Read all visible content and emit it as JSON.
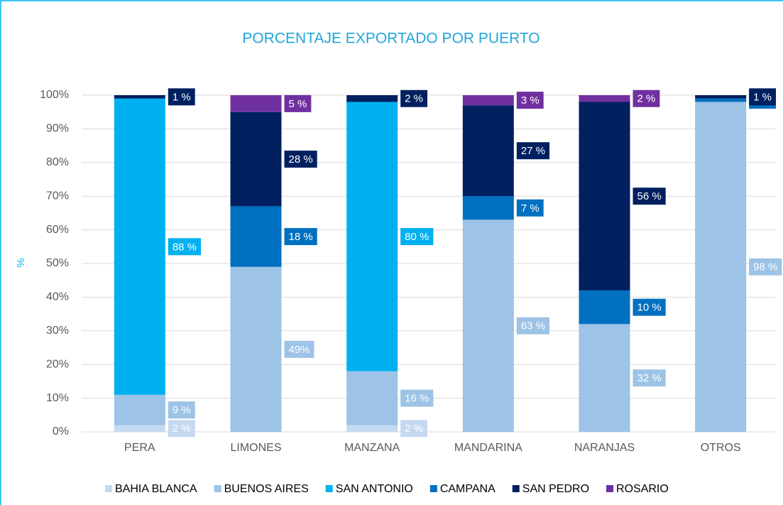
{
  "chart_data": {
    "type": "stacked_bar",
    "title": "PORCENTAJE EXPORTADO POR PUERTO",
    "y_label": "%",
    "categories": [
      "PERA",
      "LIMONES",
      "MANZANA",
      "MANDARINA",
      "NARANJAS",
      "OTROS"
    ],
    "series": [
      {
        "name": "BAHIA BLANCA",
        "color": "#c5d9f1",
        "values": [
          2,
          null,
          2,
          null,
          null,
          null
        ],
        "value_labels": [
          "2 %",
          null,
          "2 %",
          null,
          null,
          null
        ]
      },
      {
        "name": "BUENOS AIRES",
        "color": "#9dc3e6",
        "values": [
          9,
          49,
          16,
          63,
          32,
          98
        ],
        "value_labels": [
          "9 %",
          "49%",
          "16 %",
          "63 %",
          "32 %",
          "98 %"
        ]
      },
      {
        "name": "SAN ANTONIO",
        "color": "#00b0f0",
        "values": [
          88,
          null,
          80,
          null,
          null,
          null
        ],
        "value_labels": [
          "88 %",
          null,
          "80 %",
          null,
          null,
          null
        ]
      },
      {
        "name": "CAMPANA",
        "color": "#0070c0",
        "values": [
          null,
          18,
          null,
          7,
          10,
          1
        ],
        "value_labels": [
          null,
          "18 %",
          null,
          "7 %",
          "10 %",
          "1 %"
        ]
      },
      {
        "name": "SAN PEDRO",
        "color": "#002060",
        "values": [
          1,
          28,
          2,
          27,
          56,
          1
        ],
        "value_labels": [
          "1 %",
          "28 %",
          "2 %",
          "27 %",
          "56 %",
          "1 %"
        ]
      },
      {
        "name": "ROSARIO",
        "color": "#7030a0",
        "values": [
          null,
          5,
          null,
          3,
          2,
          null
        ],
        "value_labels": [
          null,
          "5 %",
          null,
          "3 %",
          "2 %",
          null
        ]
      }
    ],
    "ylim": [
      0,
      100
    ],
    "yticks": [
      {
        "value": 0,
        "label": "0%"
      },
      {
        "value": 10,
        "label": "10%"
      },
      {
        "value": 20,
        "label": "20%"
      },
      {
        "value": 30,
        "label": "30%"
      },
      {
        "value": 40,
        "label": "40%"
      },
      {
        "value": 50,
        "label": "50%"
      },
      {
        "value": 60,
        "label": "60%"
      },
      {
        "value": 70,
        "label": "70%"
      },
      {
        "value": 80,
        "label": "80%"
      },
      {
        "value": 90,
        "label": "90%"
      },
      {
        "value": 100,
        "label": "100%"
      }
    ],
    "grid": true,
    "legend": "bottom"
  }
}
